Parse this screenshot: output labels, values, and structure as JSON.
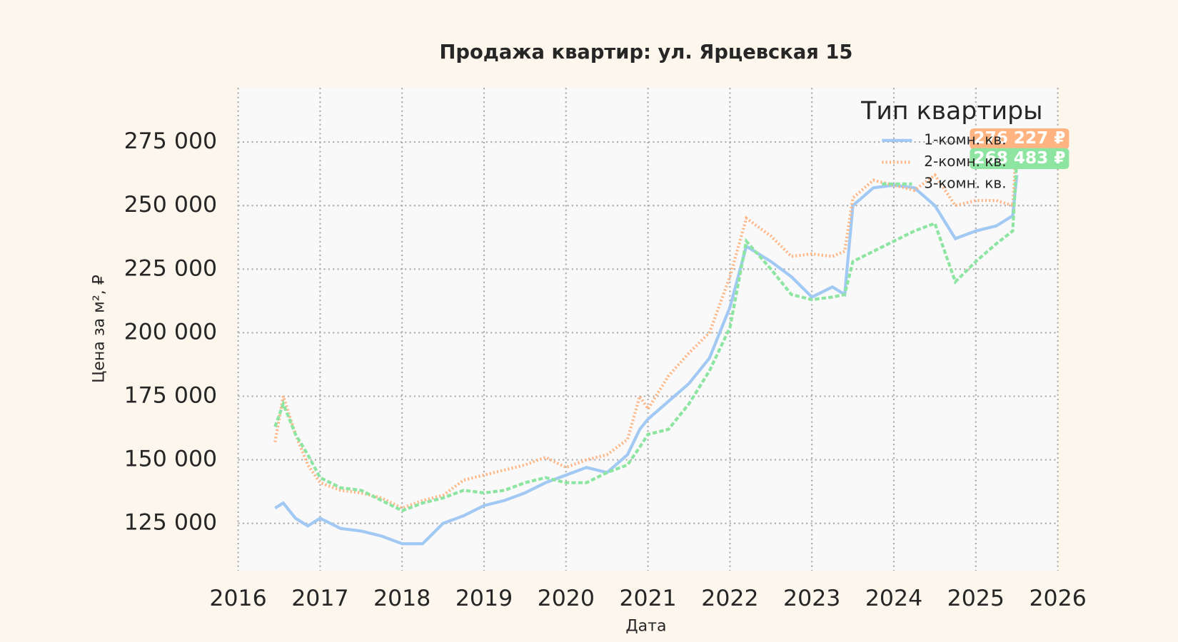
{
  "chart_data": {
    "type": "line",
    "title": "Продажа квартир: ул. Ярцевская 15",
    "x_label": "Дата",
    "y_label": "Цена за м², ₽",
    "legend_title": "Тип квартиры",
    "legend_position": "upper right",
    "grid": true,
    "xlim": [
      2016,
      2026
    ],
    "xticks": [
      2016,
      2017,
      2018,
      2019,
      2020,
      2021,
      2022,
      2023,
      2024,
      2025,
      2026
    ],
    "ylim": [
      106400,
      296300
    ],
    "yticks": [
      {
        "value": 125000,
        "label": "125 000"
      },
      {
        "value": 150000,
        "label": "150 000"
      },
      {
        "value": 175000,
        "label": "175 000"
      },
      {
        "value": 200000,
        "label": "200 000"
      },
      {
        "value": 225000,
        "label": "225 000"
      },
      {
        "value": 250000,
        "label": "250 000"
      },
      {
        "value": 275000,
        "label": "275 000"
      }
    ],
    "x": [
      2016.45,
      2016.55,
      2016.7,
      2016.85,
      2017.0,
      2017.25,
      2017.5,
      2017.75,
      2018.0,
      2018.25,
      2018.5,
      2018.75,
      2019.0,
      2019.25,
      2019.5,
      2019.75,
      2020.0,
      2020.25,
      2020.5,
      2020.75,
      2020.9,
      2021.0,
      2021.25,
      2021.5,
      2021.75,
      2022.0,
      2022.2,
      2022.5,
      2022.75,
      2023.0,
      2023.25,
      2023.4,
      2023.5,
      2023.75,
      2024.0,
      2024.25,
      2024.5,
      2024.75,
      2025.0,
      2025.25,
      2025.45,
      2025.5
    ],
    "series": [
      {
        "name": "1-комн. кв.",
        "color": "#a1c9f4",
        "style": "solid",
        "values": [
          131000,
          133000,
          127000,
          124000,
          127000,
          123000,
          122000,
          120000,
          117000,
          117000,
          125000,
          128000,
          132000,
          134000,
          137000,
          141000,
          144000,
          147000,
          145000,
          152000,
          162000,
          166000,
          173000,
          180000,
          190000,
          210000,
          234000,
          228000,
          222000,
          214000,
          218000,
          215000,
          250000,
          257000,
          258000,
          257000,
          250000,
          237000,
          240000,
          242000,
          246000,
          262000
        ]
      },
      {
        "name": "2-комн. кв.",
        "color": "#ffb482",
        "style": "dotted",
        "values": [
          157000,
          175000,
          160000,
          148000,
          141000,
          138000,
          137000,
          135000,
          131000,
          134000,
          136000,
          142000,
          144000,
          146000,
          148000,
          151000,
          147000,
          150000,
          152000,
          158000,
          175000,
          170000,
          183000,
          192000,
          200000,
          222000,
          245000,
          238000,
          230000,
          231000,
          230000,
          232000,
          253000,
          260000,
          258000,
          256000,
          262000,
          250000,
          252000,
          252000,
          250000,
          276227
        ],
        "value_labels": [
          null,
          null,
          null,
          null,
          null,
          null,
          null,
          null,
          null,
          null,
          null,
          null,
          null,
          null,
          null,
          null,
          null,
          null,
          null,
          null,
          null,
          null,
          null,
          null,
          null,
          null,
          null,
          null,
          null,
          null,
          null,
          null,
          null,
          null,
          null,
          null,
          null,
          null,
          null,
          null,
          null,
          "276 227 ₽"
        ]
      },
      {
        "name": "3-комн. кв.",
        "color": "#8de5a1",
        "style": "dashed",
        "values": [
          163000,
          172000,
          160000,
          152000,
          143000,
          139000,
          138000,
          134000,
          130000,
          133000,
          135000,
          138000,
          137000,
          138000,
          141000,
          143000,
          141000,
          141000,
          145000,
          148000,
          155000,
          160000,
          162000,
          172000,
          185000,
          202000,
          236000,
          225000,
          215000,
          213000,
          214000,
          215000,
          228000,
          232000,
          236000,
          240000,
          243000,
          220000,
          228000,
          235000,
          240000,
          268483
        ],
        "value_labels": [
          null,
          null,
          null,
          null,
          null,
          null,
          null,
          null,
          null,
          null,
          null,
          null,
          null,
          null,
          null,
          null,
          null,
          null,
          null,
          null,
          null,
          null,
          null,
          null,
          null,
          null,
          null,
          null,
          null,
          null,
          null,
          null,
          null,
          null,
          null,
          null,
          null,
          null,
          null,
          null,
          null,
          "268 483 ₽"
        ]
      }
    ]
  }
}
